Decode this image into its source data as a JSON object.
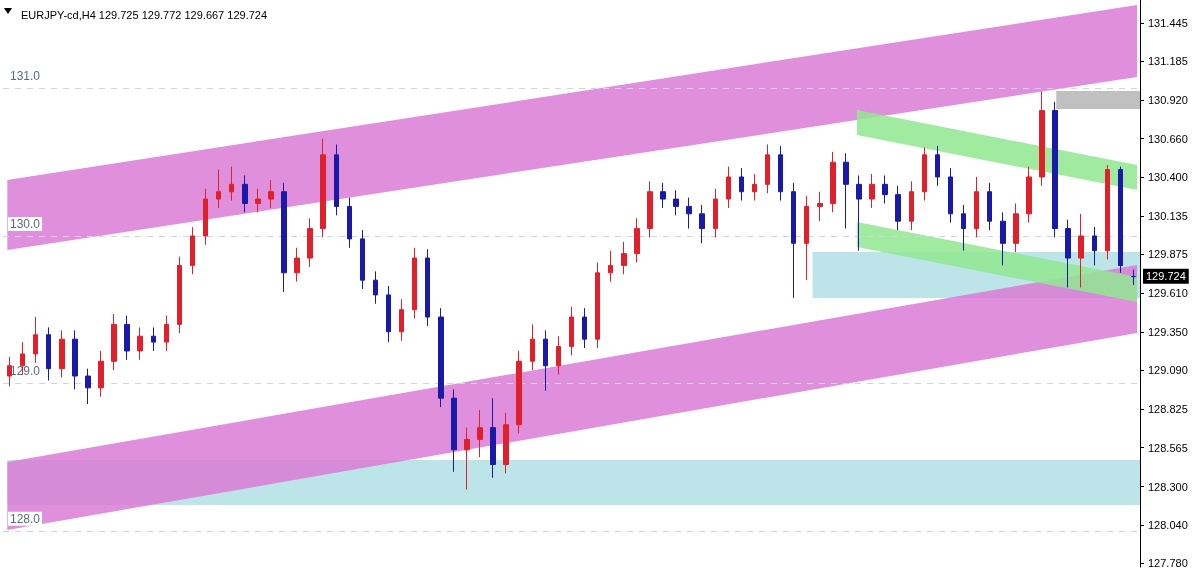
{
  "chart_data": {
    "type": "candlestick",
    "title": "EURJPY-cd,H4 129.725 129.772 129.667 129.724",
    "categories": [
      null,
      null,
      null,
      null,
      null,
      null,
      null,
      null,
      null,
      null,
      null,
      null,
      null,
      null,
      null,
      null,
      null,
      null,
      null,
      null,
      null,
      null,
      null,
      null,
      null,
      null,
      null,
      null,
      null,
      null,
      null,
      null,
      null,
      null,
      null,
      null,
      null,
      null,
      null,
      null,
      null,
      null,
      null,
      null,
      null,
      null,
      null,
      null,
      null,
      null,
      null,
      null,
      null,
      null,
      null,
      null,
      null,
      null,
      null,
      null,
      null,
      null,
      null,
      null,
      null,
      null,
      null,
      null,
      null,
      null,
      null,
      null,
      null,
      null,
      null,
      null,
      null,
      null,
      null,
      null,
      null,
      null,
      null,
      null,
      null,
      null,
      null
    ],
    "ohlc": [
      [
        129.05,
        129.18,
        128.98,
        129.12
      ],
      [
        129.12,
        129.28,
        129.06,
        129.2
      ],
      [
        129.2,
        129.45,
        129.14,
        129.33
      ],
      [
        129.33,
        129.38,
        129.02,
        129.1
      ],
      [
        129.1,
        129.36,
        129.04,
        129.3
      ],
      [
        129.3,
        129.36,
        128.96,
        129.05
      ],
      [
        129.05,
        129.1,
        128.86,
        128.97
      ],
      [
        128.97,
        129.22,
        128.91,
        129.15
      ],
      [
        129.15,
        129.47,
        129.09,
        129.4
      ],
      [
        129.4,
        129.46,
        129.16,
        129.22
      ],
      [
        129.22,
        129.38,
        129.16,
        129.32
      ],
      [
        129.32,
        129.38,
        129.22,
        129.28
      ],
      [
        129.28,
        129.46,
        129.22,
        129.4
      ],
      [
        129.4,
        129.86,
        129.34,
        129.8
      ],
      [
        129.8,
        130.06,
        129.74,
        130.0
      ],
      [
        130.0,
        130.32,
        129.94,
        130.25
      ],
      [
        130.25,
        130.45,
        130.19,
        130.3
      ],
      [
        130.3,
        130.47,
        130.24,
        130.35
      ],
      [
        130.35,
        130.41,
        130.16,
        130.22
      ],
      [
        130.22,
        130.32,
        130.16,
        130.25
      ],
      [
        130.25,
        130.38,
        130.19,
        130.3
      ],
      [
        130.3,
        130.36,
        129.62,
        129.75
      ],
      [
        129.75,
        129.92,
        129.69,
        129.85
      ],
      [
        129.85,
        130.12,
        129.79,
        130.05
      ],
      [
        130.05,
        130.66,
        129.99,
        130.55
      ],
      [
        130.55,
        130.62,
        130.14,
        130.2
      ],
      [
        130.2,
        130.26,
        129.92,
        129.98
      ],
      [
        129.98,
        130.04,
        129.64,
        129.7
      ],
      [
        129.7,
        129.76,
        129.54,
        129.6
      ],
      [
        129.6,
        129.66,
        129.28,
        129.35
      ],
      [
        129.35,
        129.57,
        129.29,
        129.5
      ],
      [
        129.5,
        129.92,
        129.44,
        129.85
      ],
      [
        129.85,
        129.91,
        129.39,
        129.45
      ],
      [
        129.45,
        129.51,
        128.84,
        128.9
      ],
      [
        128.9,
        128.96,
        128.4,
        128.55
      ],
      [
        128.55,
        128.7,
        128.28,
        128.62
      ],
      [
        128.62,
        128.82,
        128.5,
        128.7
      ],
      [
        128.7,
        128.9,
        128.36,
        128.45
      ],
      [
        128.45,
        128.8,
        128.39,
        128.72
      ],
      [
        128.72,
        129.22,
        128.66,
        129.15
      ],
      [
        129.15,
        129.4,
        129.09,
        129.3
      ],
      [
        129.3,
        129.36,
        128.95,
        129.12
      ],
      [
        129.12,
        129.32,
        129.06,
        129.25
      ],
      [
        129.25,
        129.52,
        129.19,
        129.45
      ],
      [
        129.45,
        129.51,
        129.24,
        129.3
      ],
      [
        129.3,
        129.82,
        129.24,
        129.75
      ],
      [
        129.75,
        129.9,
        129.69,
        129.8
      ],
      [
        129.8,
        129.96,
        129.74,
        129.88
      ],
      [
        129.88,
        130.12,
        129.82,
        130.05
      ],
      [
        130.05,
        130.37,
        129.99,
        130.3
      ],
      [
        130.3,
        130.36,
        130.19,
        130.25
      ],
      [
        130.25,
        130.31,
        130.14,
        130.2
      ],
      [
        130.2,
        130.26,
        130.05,
        130.15
      ],
      [
        130.15,
        130.21,
        129.95,
        130.05
      ],
      [
        130.05,
        130.32,
        129.99,
        130.25
      ],
      [
        130.25,
        130.47,
        130.19,
        130.4
      ],
      [
        130.4,
        130.46,
        130.24,
        130.3
      ],
      [
        130.3,
        130.42,
        130.24,
        130.35
      ],
      [
        130.35,
        130.62,
        130.29,
        130.55
      ],
      [
        130.55,
        130.61,
        130.24,
        130.3
      ],
      [
        130.3,
        130.36,
        129.58,
        129.95
      ],
      [
        129.95,
        130.27,
        129.7,
        130.2
      ],
      [
        130.2,
        130.3,
        130.1,
        130.22
      ],
      [
        130.22,
        130.57,
        130.16,
        130.5
      ],
      [
        130.5,
        130.56,
        130.05,
        130.35
      ],
      [
        130.35,
        130.41,
        129.9,
        130.25
      ],
      [
        130.25,
        130.42,
        130.19,
        130.35
      ],
      [
        130.35,
        130.41,
        130.22,
        130.28
      ],
      [
        130.28,
        130.34,
        130.04,
        130.1
      ],
      [
        130.1,
        130.37,
        130.04,
        130.3
      ],
      [
        130.3,
        130.6,
        130.24,
        130.55
      ],
      [
        130.55,
        130.61,
        130.34,
        130.4
      ],
      [
        130.4,
        130.46,
        130.09,
        130.15
      ],
      [
        130.15,
        130.21,
        129.9,
        130.05
      ],
      [
        130.05,
        130.4,
        129.99,
        130.3
      ],
      [
        130.3,
        130.36,
        130.04,
        130.1
      ],
      [
        130.1,
        130.16,
        129.8,
        129.95
      ],
      [
        129.95,
        130.22,
        129.89,
        130.15
      ],
      [
        130.15,
        130.47,
        130.09,
        130.4
      ],
      [
        130.4,
        130.98,
        130.34,
        130.85
      ],
      [
        130.85,
        130.91,
        129.99,
        130.05
      ],
      [
        130.05,
        130.11,
        129.65,
        129.85
      ],
      [
        129.85,
        130.15,
        129.65,
        130.0
      ],
      [
        130.0,
        130.06,
        129.8,
        129.9
      ],
      [
        129.9,
        130.48,
        129.84,
        130.45
      ],
      [
        130.45,
        130.47,
        129.75,
        129.8
      ],
      [
        129.725,
        129.772,
        129.667,
        129.724
      ]
    ],
    "colors": [
      "#e0202a",
      "#e0202a",
      "#e0202a",
      "#1a1aa8",
      "#e0202a",
      "#1a1aa8",
      "#1a1aa8",
      "#e0202a",
      "#e0202a",
      "#1a1aa8",
      "#e0202a",
      "#1a1aa8",
      "#e0202a",
      "#e0202a",
      "#e0202a",
      "#e0202a",
      "#e0202a",
      "#e0202a",
      "#1a1aa8",
      "#e0202a",
      "#e0202a",
      "#1a1aa8",
      "#e0202a",
      "#e0202a",
      "#e0202a",
      "#1a1aa8",
      "#1a1aa8",
      "#1a1aa8",
      "#1a1aa8",
      "#1a1aa8",
      "#e0202a",
      "#e0202a",
      "#1a1aa8",
      "#1a1aa8",
      "#1a1aa8",
      "#e0202a",
      "#e0202a",
      "#1a1aa8",
      "#e0202a",
      "#e0202a",
      "#e0202a",
      "#1a1aa8",
      "#e0202a",
      "#e0202a",
      "#1a1aa8",
      "#e0202a",
      "#e0202a",
      "#e0202a",
      "#e0202a",
      "#e0202a",
      "#1a1aa8",
      "#1a1aa8",
      "#1a1aa8",
      "#1a1aa8",
      "#e0202a",
      "#e0202a",
      "#1a1aa8",
      "#e0202a",
      "#e0202a",
      "#1a1aa8",
      "#1a1aa8",
      "#e0202a",
      "#e0202a",
      "#e0202a",
      "#1a1aa8",
      "#1a1aa8",
      "#e0202a",
      "#1a1aa8",
      "#1a1aa8",
      "#e0202a",
      "#e0202a",
      "#1a1aa8",
      "#1a1aa8",
      "#1a1aa8",
      "#e0202a",
      "#1a1aa8",
      "#1a1aa8",
      "#e0202a",
      "#e0202a",
      "#e0202a",
      "#1a1aa8",
      "#1a1aa8",
      "#e0202a",
      "#1a1aa8",
      "#e0202a",
      "#1a1aa8",
      "#1a1aa8"
    ],
    "ylim": [
      127.755,
      131.6
    ],
    "yticks": [
      {
        "value": 127.78,
        "label": "127.780"
      },
      {
        "value": 128.04,
        "label": "128.040"
      },
      {
        "value": 128.3,
        "label": "128.300"
      },
      {
        "value": 128.565,
        "label": "128.565"
      },
      {
        "value": 128.825,
        "label": "128.825"
      },
      {
        "value": 129.09,
        "label": "129.090"
      },
      {
        "value": 129.35,
        "label": "129.350"
      },
      {
        "value": 129.61,
        "label": "129.610"
      },
      {
        "value": 129.875,
        "label": "129.875"
      },
      {
        "value": 130.135,
        "label": "130.135"
      },
      {
        "value": 130.4,
        "label": "130.400"
      },
      {
        "value": 130.66,
        "label": "130.660"
      },
      {
        "value": 130.92,
        "label": "130.920"
      },
      {
        "value": 131.185,
        "label": "131.185"
      },
      {
        "value": 131.445,
        "label": "131.445"
      }
    ],
    "ref_lines": [
      {
        "axis": "y",
        "value": 131,
        "label": "131.0"
      },
      {
        "axis": "y",
        "value": 130,
        "label": "130.0"
      },
      {
        "axis": "y",
        "value": 129,
        "label": "129.0"
      },
      {
        "axis": "y",
        "value": 128,
        "label": "128.0"
      }
    ],
    "line_style": "dashed",
    "annotations": [
      "129.724"
    ],
    "tick_labels": "y",
    "grid": false
  }
}
